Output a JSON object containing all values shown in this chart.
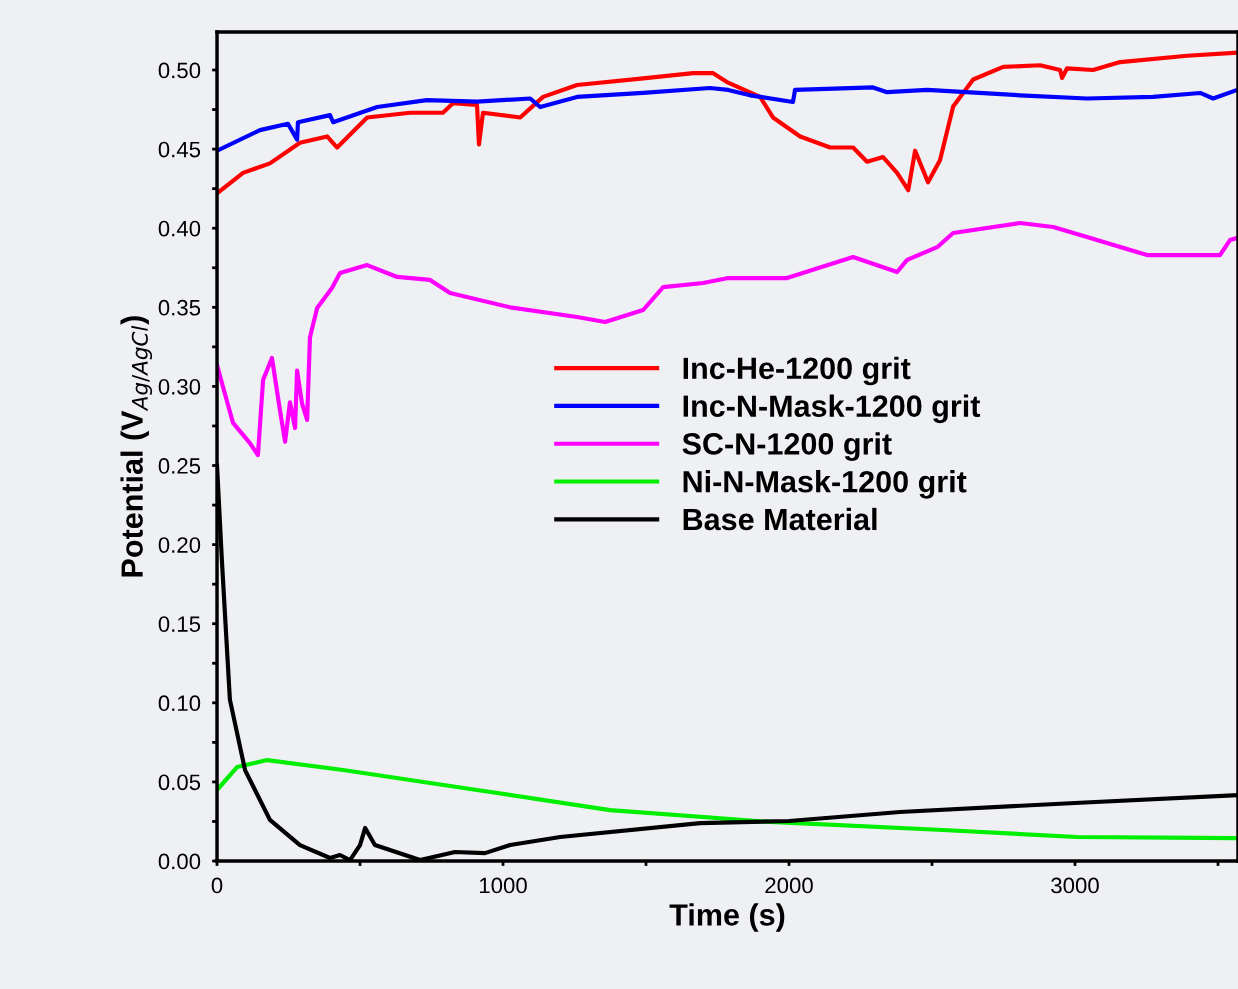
{
  "chart_data": {
    "type": "line",
    "xlabel": "Time (s)",
    "ylabel": "Potential (V$_{Ag/AgCl}$)",
    "xlim": [
      0,
      3570
    ],
    "ylim": [
      0,
      0.524
    ],
    "xticks": [
      0,
      {
        "value": 500,
        "label": null
      },
      1000,
      {
        "value": 1500,
        "label": null
      },
      2000,
      {
        "value": 2500,
        "label": null
      },
      3000,
      {
        "value": 3500,
        "label": null
      }
    ],
    "yticks": [
      {
        "value": 0,
        "label": "0.00"
      },
      {
        "value": 0.025,
        "label": null
      },
      {
        "value": 0.05,
        "label": "0.05"
      },
      {
        "value": 0.075,
        "label": null
      },
      {
        "value": 0.1,
        "label": "0.10"
      },
      {
        "value": 0.125,
        "label": null
      },
      {
        "value": 0.15,
        "label": "0.15"
      },
      {
        "value": 0.175,
        "label": null
      },
      {
        "value": 0.2,
        "label": "0.20"
      },
      {
        "value": 0.225,
        "label": null
      },
      {
        "value": 0.25,
        "label": "0.25"
      },
      {
        "value": 0.275,
        "label": null
      },
      {
        "value": 0.3,
        "label": "0.30"
      },
      {
        "value": 0.325,
        "label": null
      },
      {
        "value": 0.35,
        "label": "0.35"
      },
      {
        "value": 0.375,
        "label": null
      },
      {
        "value": 0.4,
        "label": "0.40"
      },
      {
        "value": 0.425,
        "label": null
      },
      {
        "value": 0.45,
        "label": "0.45"
      },
      {
        "value": 0.475,
        "label": null
      },
      {
        "value": 0.5,
        "label": "0.50"
      }
    ],
    "grid": false,
    "legend": "center",
    "marker": "none",
    "line_style": "solid",
    "series": [
      {
        "name": "Inc-He-1200 grit",
        "color": "#ff0000",
        "x": [
          0,
          91,
          185,
          290,
          385,
          420,
          525,
          675,
          790,
          825,
          909,
          916,
          930,
          1060,
          1140,
          1259,
          1490,
          1665,
          1735,
          1787,
          1899,
          1944,
          2039,
          2144,
          2224,
          2273,
          2329,
          2378,
          2417,
          2441,
          2486,
          2528,
          2574,
          2644,
          2749,
          2878,
          2948,
          2955,
          2972,
          3063,
          3158,
          3392,
          3567
        ],
        "values": [
          0.422,
          0.435,
          0.441,
          0.454,
          0.458,
          0.451,
          0.47,
          0.473,
          0.473,
          0.479,
          0.478,
          0.453,
          0.473,
          0.47,
          0.483,
          0.4905,
          0.4947,
          0.498,
          0.498,
          0.492,
          0.483,
          0.47,
          0.458,
          0.451,
          0.451,
          0.442,
          0.445,
          0.435,
          0.424,
          0.449,
          0.429,
          0.443,
          0.477,
          0.494,
          0.502,
          0.503,
          0.5,
          0.495,
          0.501,
          0.5,
          0.505,
          0.509,
          0.511
        ]
      },
      {
        "name": "Inc-N-Mask-1200 grit",
        "color": "#0000ff",
        "x": [
          0,
          150,
          248,
          280,
          283,
          395,
          406,
          560,
          734,
          909,
          1095,
          1130,
          1259,
          1490,
          1724,
          1787,
          1864,
          2014,
          2021,
          2294,
          2343,
          2483,
          2808,
          3042,
          3273,
          3438,
          3483,
          3567
        ],
        "values": [
          0.449,
          0.462,
          0.466,
          0.456,
          0.467,
          0.4715,
          0.467,
          0.4766,
          0.481,
          0.48,
          0.482,
          0.4766,
          0.483,
          0.4855,
          0.4886,
          0.4874,
          0.484,
          0.4798,
          0.4874,
          0.489,
          0.486,
          0.4874,
          0.484,
          0.482,
          0.483,
          0.4855,
          0.482,
          0.4874
        ]
      },
      {
        "name": "SC-N-1200 grit",
        "color": "#ff00ff",
        "x": [
          0,
          21,
          56,
          115,
          143,
          161,
          192,
          220,
          238,
          255,
          273,
          280,
          297,
          315,
          325,
          350,
          402,
          430,
          525,
          630,
          745,
          815,
          1025,
          1259,
          1357,
          1490,
          1560,
          1700,
          1787,
          1993,
          2224,
          2378,
          2413,
          2518,
          2574,
          2808,
          2924,
          3042,
          3252,
          3507,
          3542,
          3570
        ],
        "values": [
          0.3135,
          0.2996,
          0.2769,
          0.2642,
          0.2566,
          0.304,
          0.318,
          0.285,
          0.265,
          0.29,
          0.2737,
          0.31,
          0.2895,
          0.2788,
          0.331,
          0.3496,
          0.3622,
          0.3717,
          0.3767,
          0.3692,
          0.3673,
          0.359,
          0.35,
          0.3439,
          0.3407,
          0.3483,
          0.3628,
          0.3654,
          0.3685,
          0.3685,
          0.3818,
          0.3723,
          0.38,
          0.388,
          0.397,
          0.4033,
          0.4008,
          0.3944,
          0.383,
          0.383,
          0.3925,
          0.394
        ]
      },
      {
        "name": "Ni-N-Mask-1200 grit",
        "color": "#00ee00",
        "x": [
          0,
          70,
          175,
          441,
          909,
          1374,
          1934,
          2539,
          3007,
          3570
        ],
        "values": [
          0.0449,
          0.0594,
          0.0638,
          0.0575,
          0.0449,
          0.0322,
          0.0247,
          0.0196,
          0.0152,
          0.0145
        ]
      },
      {
        "name": "Base Material",
        "color": "#000000",
        "x": [
          0,
          17,
          45,
          98,
          185,
          290,
          395,
          430,
          465,
          500,
          518,
          552,
          710,
          832,
          937,
          1025,
          1200,
          1689,
          2000,
          2388,
          3000,
          3570
        ],
        "values": [
          0.25,
          0.19,
          0.102,
          0.0575,
          0.026,
          0.0101,
          0.0019,
          0.0038,
          0.0006,
          0.0101,
          0.0209,
          0.0101,
          0.0006,
          0.0057,
          0.005,
          0.0101,
          0.0152,
          0.024,
          0.0253,
          0.031,
          0.0367,
          0.0417
        ]
      }
    ]
  }
}
